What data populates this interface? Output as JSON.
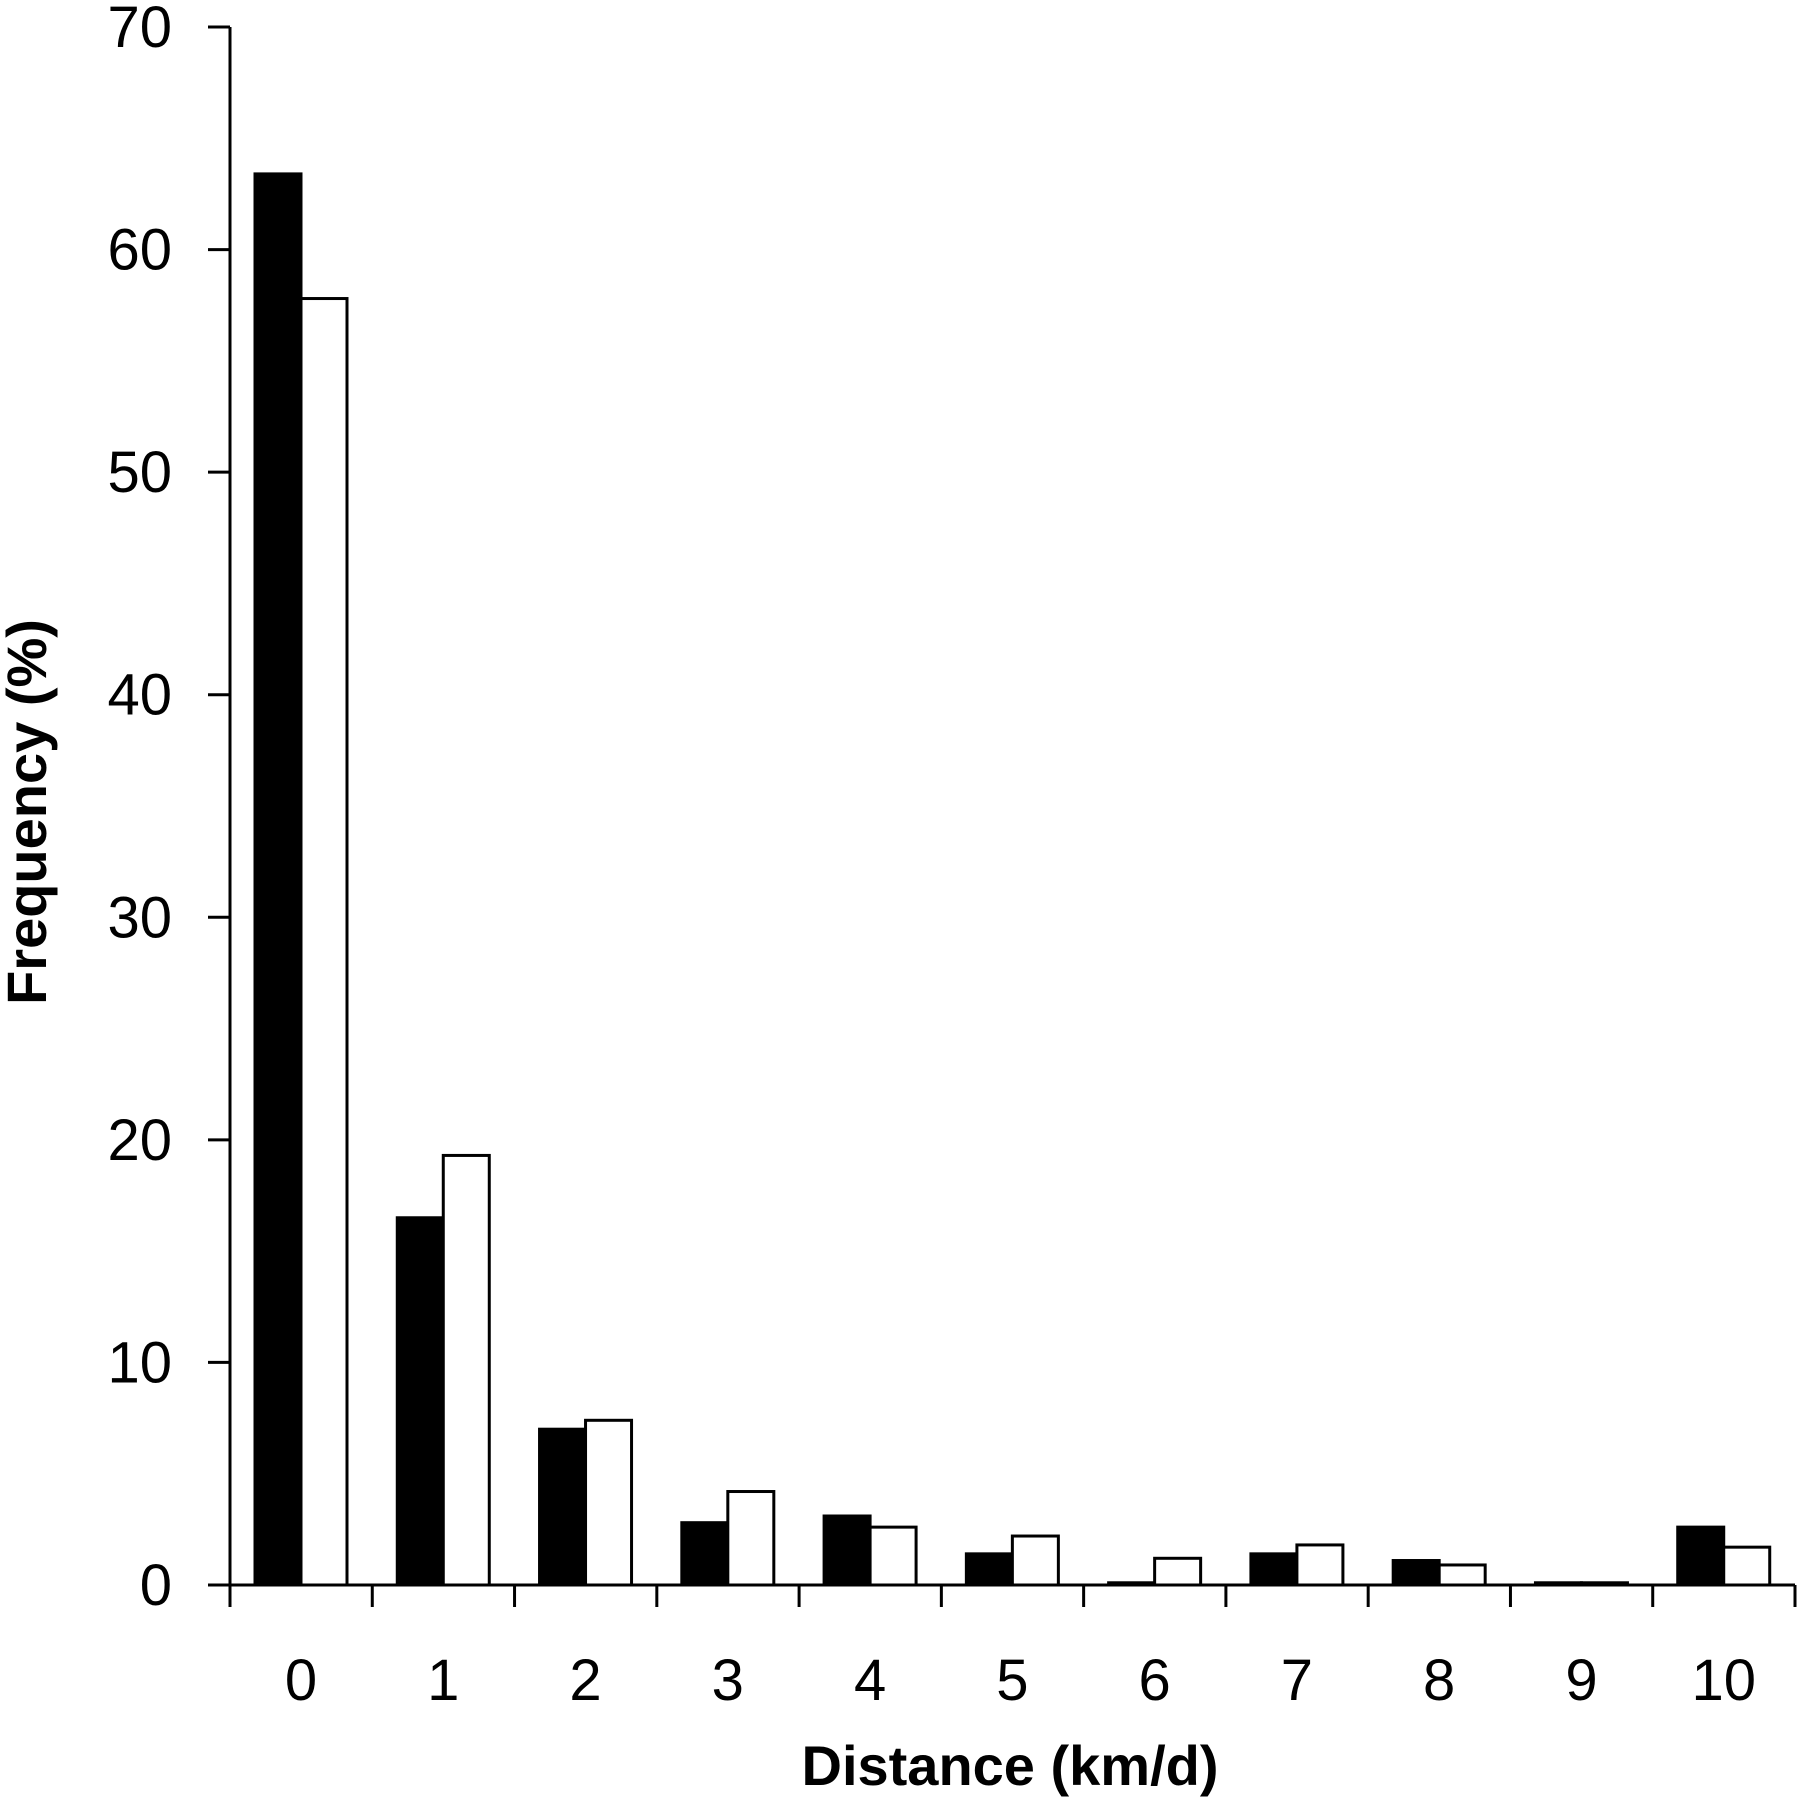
{
  "chart_data": {
    "type": "bar",
    "title": "",
    "xlabel": "Distance (km/d)",
    "ylabel": "Frequency (%)",
    "categories": [
      "0",
      "1",
      "2",
      "3",
      "4",
      "5",
      "6",
      "7",
      "8",
      "9",
      "10"
    ],
    "series": [
      {
        "fill": "#000000",
        "values": [
          63.4,
          16.5,
          7.0,
          2.8,
          3.1,
          1.4,
          0.1,
          1.4,
          1.1,
          0.1,
          2.6
        ]
      },
      {
        "fill": "#ffffff",
        "values": [
          57.8,
          19.3,
          7.4,
          4.2,
          2.6,
          2.2,
          1.2,
          1.8,
          0.9,
          0.1,
          1.7
        ]
      }
    ],
    "ylim": [
      0,
      70
    ],
    "yticks": [
      "0",
      "10",
      "20",
      "30",
      "40",
      "50",
      "60",
      "70"
    ],
    "grid": false,
    "legend": "none"
  }
}
